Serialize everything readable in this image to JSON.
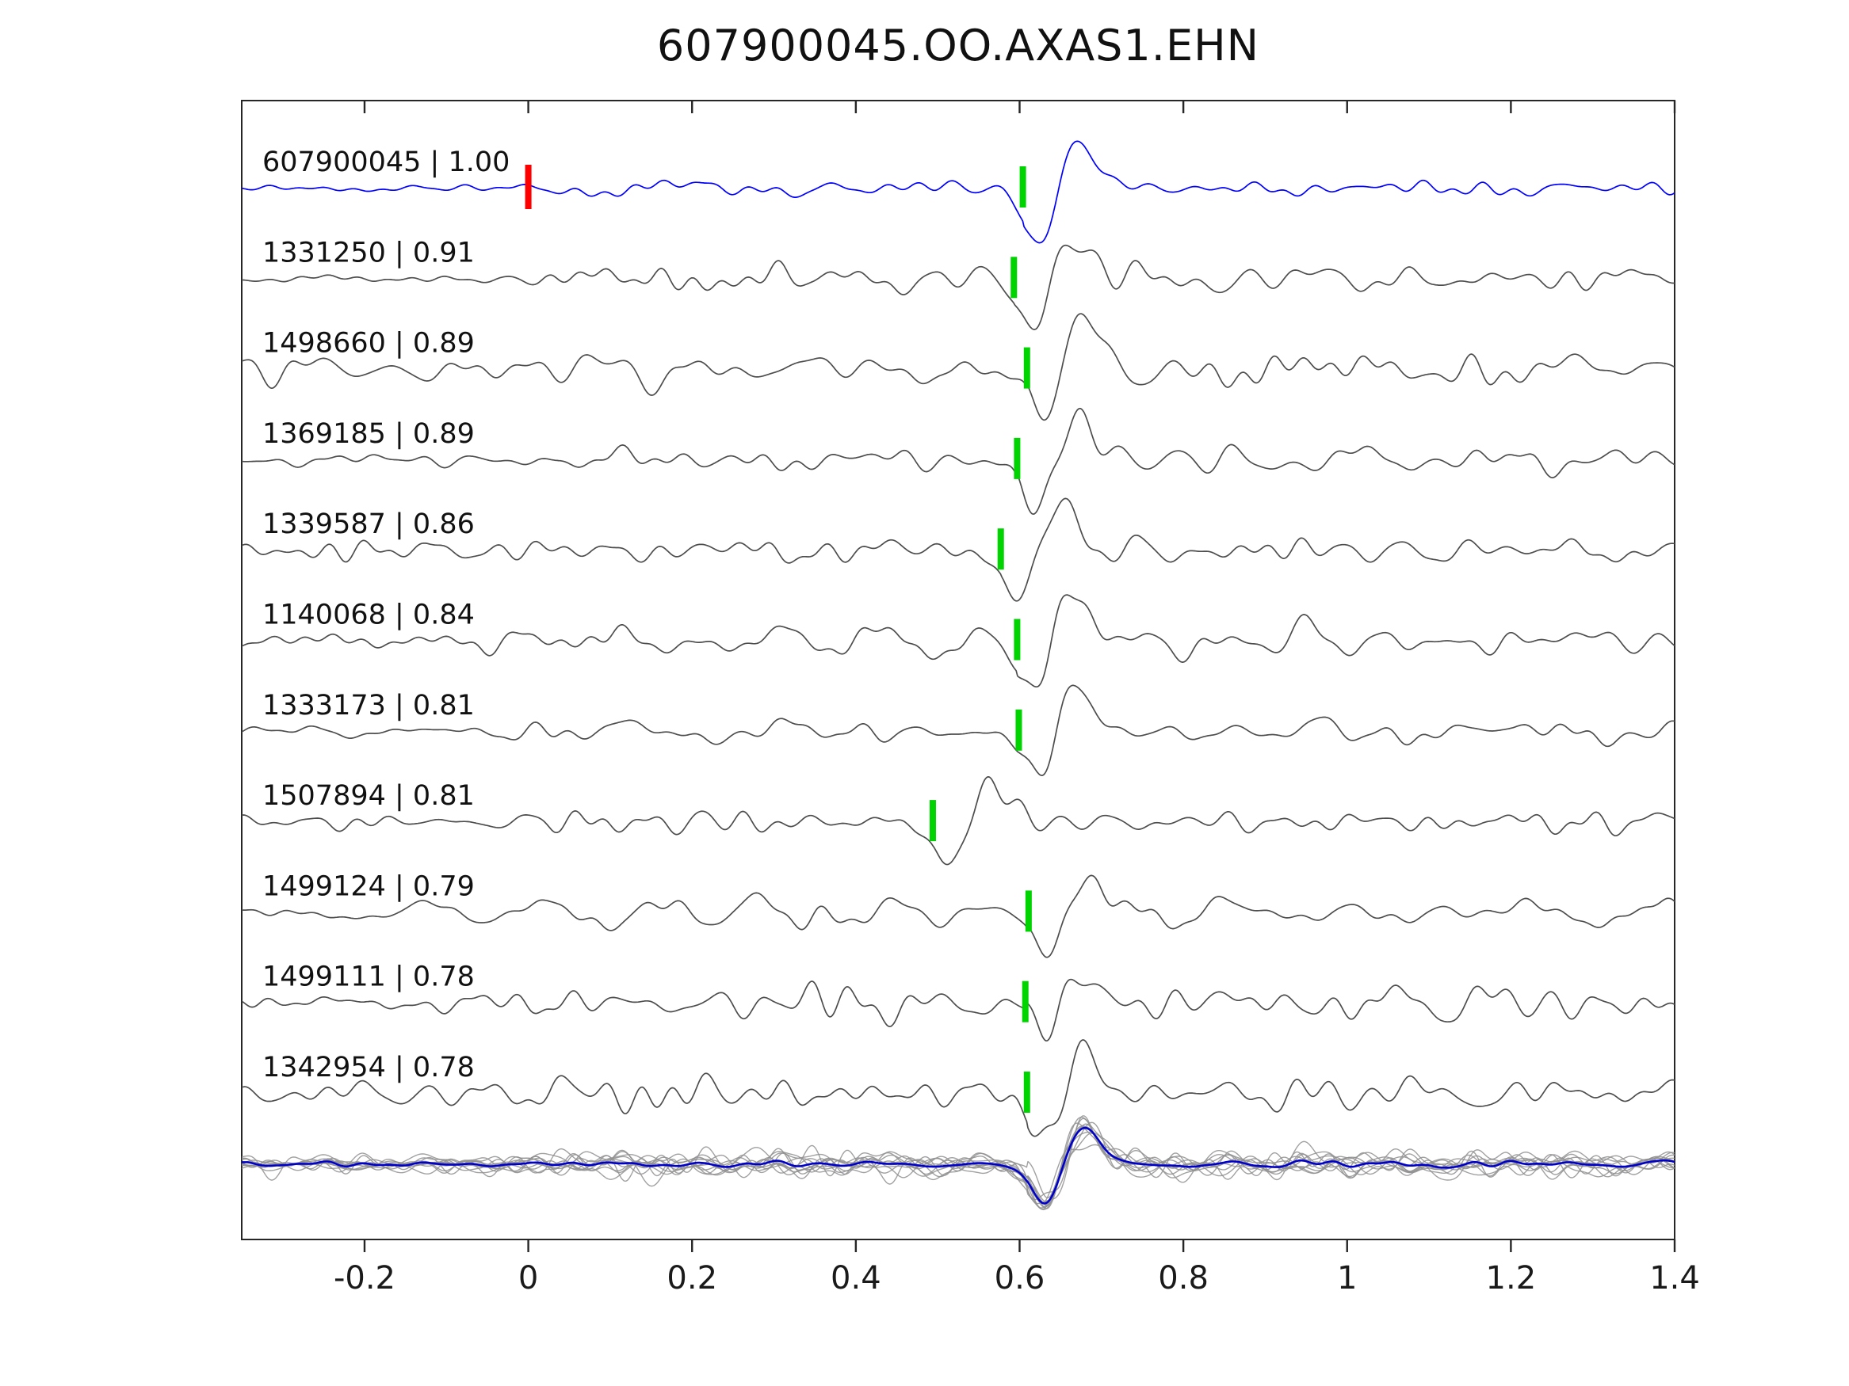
{
  "title": "607900045.OO.AXAS1.EHN",
  "chart_data": {
    "type": "line",
    "title": "607900045.OO.AXAS1.EHN",
    "xlabel": "",
    "ylabel": "",
    "xlim": [
      -0.35,
      1.4
    ],
    "x_ticks": [
      -0.2,
      0,
      0.2,
      0.4,
      0.6,
      0.8,
      1,
      1.2,
      1.4
    ],
    "x_tick_labels": [
      "-0.2",
      "0",
      "0.2",
      "0.4",
      "0.6",
      "0.8",
      "1",
      "1.2",
      "1.4"
    ],
    "grid": false,
    "legend": "none",
    "description": "Matched-filter seismic waveform comparison: each row is one event trace labeled 'event_id | cross-correlation', aligned on phase pick (green tick). Top row is the template event (blue) with red origin marker at t=0. Bottom panel overlays all traces (gray) with the aligned stack (blue).",
    "traces": [
      {
        "event_id": "607900045",
        "correlation": 1.0,
        "label": "607900045 | 1.00",
        "pick_time": 0.604,
        "is_template": true,
        "line_color": "#0000ff",
        "pick_marker_color": "#00d400",
        "origin_marker": {
          "time": 0.0,
          "color": "#ff0000"
        }
      },
      {
        "event_id": "1331250",
        "correlation": 0.91,
        "label": "1331250 | 0.91",
        "pick_time": 0.593,
        "is_template": false,
        "line_color": "#4d4d4d",
        "pick_marker_color": "#00d400"
      },
      {
        "event_id": "1498660",
        "correlation": 0.89,
        "label": "1498660 | 0.89",
        "pick_time": 0.609,
        "is_template": false,
        "line_color": "#4d4d4d",
        "pick_marker_color": "#00d400"
      },
      {
        "event_id": "1369185",
        "correlation": 0.89,
        "label": "1369185 | 0.89",
        "pick_time": 0.597,
        "is_template": false,
        "line_color": "#4d4d4d",
        "pick_marker_color": "#00d400"
      },
      {
        "event_id": "1339587",
        "correlation": 0.86,
        "label": "1339587 | 0.86",
        "pick_time": 0.577,
        "is_template": false,
        "line_color": "#4d4d4d",
        "pick_marker_color": "#00d400"
      },
      {
        "event_id": "1140068",
        "correlation": 0.84,
        "label": "1140068 | 0.84",
        "pick_time": 0.597,
        "is_template": false,
        "line_color": "#4d4d4d",
        "pick_marker_color": "#00d400"
      },
      {
        "event_id": "1333173",
        "correlation": 0.81,
        "label": "1333173 | 0.81",
        "pick_time": 0.599,
        "is_template": false,
        "line_color": "#4d4d4d",
        "pick_marker_color": "#00d400"
      },
      {
        "event_id": "1507894",
        "correlation": 0.81,
        "label": "1507894 | 0.81",
        "pick_time": 0.494,
        "is_template": false,
        "line_color": "#4d4d4d",
        "pick_marker_color": "#00d400"
      },
      {
        "event_id": "1499124",
        "correlation": 0.79,
        "label": "1499124 | 0.79",
        "pick_time": 0.611,
        "is_template": false,
        "line_color": "#4d4d4d",
        "pick_marker_color": "#00d400"
      },
      {
        "event_id": "1499111",
        "correlation": 0.78,
        "label": "1499111 | 0.78",
        "pick_time": 0.607,
        "is_template": false,
        "line_color": "#4d4d4d",
        "pick_marker_color": "#00d400"
      },
      {
        "event_id": "1342954",
        "correlation": 0.78,
        "label": "1342954 | 0.78",
        "pick_time": 0.609,
        "is_template": false,
        "line_color": "#4d4d4d",
        "pick_marker_color": "#00d400"
      }
    ],
    "overlay": {
      "align_time": 0.61,
      "member_color": "#909090",
      "stack_color": "#0000cc",
      "note": "all 11 traces overlaid aligned on pick; blue curve is the stack/mean"
    }
  }
}
